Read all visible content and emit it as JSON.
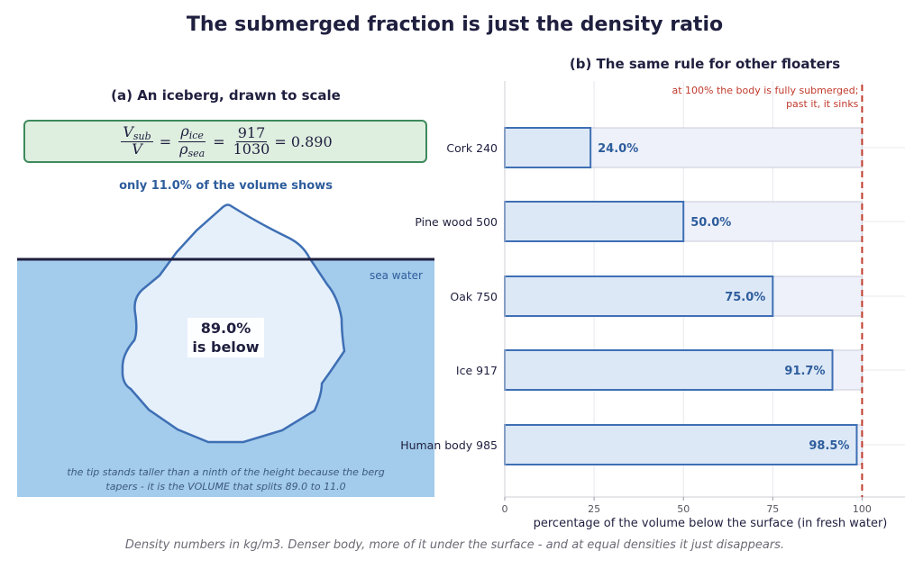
{
  "title": "The submerged fraction is just the density ratio",
  "panel_a": {
    "title": "(a) An iceberg, drawn to scale",
    "formula": {
      "lhs_num": "V",
      "lhs_num_sub": "sub",
      "lhs_den": "V",
      "mid_num": "ρ",
      "mid_num_sub": "ice",
      "mid_den": "ρ",
      "mid_den_sub": "sea",
      "rhs_num": "917",
      "rhs_den": "1030",
      "result": "= 0.890"
    },
    "shows_note": "only 11.0% of the volume shows",
    "sea_label": "sea water",
    "below_line1": "89.0%",
    "below_line2": "is below",
    "tip_note_line1": "the tip stands taller than a ninth of the height because the berg",
    "tip_note_line2": "tapers - it is the VOLUME that splits 89.0 to 11.0",
    "submerged_fraction": 0.89
  },
  "panel_b": {
    "title": "(b) The same rule for other floaters",
    "annotation_line1": "at 100% the body is fully submerged;",
    "annotation_line2": "past it, it sinks",
    "xlabel": "percentage of the volume below the surface  (in fresh water)",
    "colors": {
      "bar_fill": "#dce8f6",
      "bar_edge": "#3e6fb4",
      "track_fill": "#eef1fa",
      "track_edge": "#c8cbd8",
      "label_text": "#2e5d9c",
      "limit_line": "#c0392b"
    }
  },
  "chart_data": {
    "type": "bar",
    "orientation": "horizontal",
    "categories": [
      "Cork  240",
      "Pine wood  500",
      "Oak  750",
      "Ice  917",
      "Human body  985"
    ],
    "values": [
      24.0,
      50.0,
      75.0,
      91.7,
      98.5
    ],
    "value_labels": [
      "24.0%",
      "50.0%",
      "75.0%",
      "91.7%",
      "98.5%"
    ],
    "xlim": [
      0,
      112
    ],
    "xticks": [
      0,
      25,
      50,
      75,
      100
    ],
    "reference_line_x": 100,
    "grid": true
  },
  "caption": "Density numbers in kg/m3. Denser body, more of it under the surface - and at equal densities it just disappears."
}
